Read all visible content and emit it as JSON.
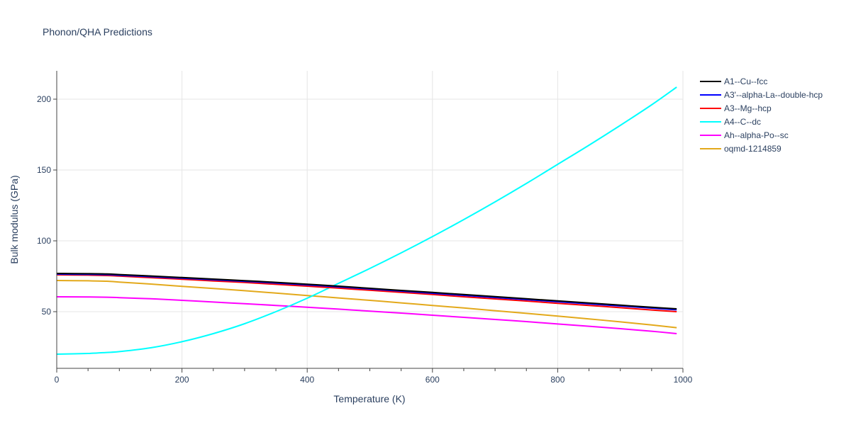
{
  "chart_data": {
    "type": "line",
    "title": "Phonon/QHA Predictions",
    "xlabel": "Temperature (K)",
    "ylabel": "Bulk modulus (GPa)",
    "xlim": [
      0,
      1000
    ],
    "ylim": [
      10,
      220
    ],
    "xticks": [
      0,
      200,
      400,
      600,
      800,
      1000
    ],
    "yticks": [
      50,
      100,
      150,
      200
    ],
    "grid": true,
    "legend_position": "top-right",
    "x": [
      0,
      50,
      80,
      100,
      150,
      200,
      250,
      300,
      350,
      400,
      450,
      500,
      550,
      600,
      650,
      700,
      750,
      800,
      850,
      900,
      950,
      990
    ],
    "series": [
      {
        "name": "A1--Cu--fcc",
        "color": "#000000",
        "values": [
          77.0,
          76.8,
          76.6,
          76.2,
          75.2,
          74.1,
          73.0,
          71.9,
          70.7,
          69.4,
          68.0,
          66.5,
          65.0,
          63.6,
          62.1,
          60.6,
          59.1,
          57.6,
          56.1,
          54.6,
          53.1,
          52.0
        ]
      },
      {
        "name": "A3'--alpha-La--double-hcp",
        "color": "#0000ff",
        "values": [
          76.5,
          76.3,
          76.1,
          75.7,
          74.7,
          73.6,
          72.5,
          71.4,
          70.2,
          68.9,
          67.5,
          66.0,
          64.5,
          63.0,
          61.5,
          60.0,
          58.5,
          57.0,
          55.5,
          54.0,
          52.5,
          51.3
        ]
      },
      {
        "name": "A3--Mg--hcp",
        "color": "#ff0000",
        "values": [
          76.0,
          75.8,
          75.5,
          75.1,
          74.0,
          72.9,
          71.7,
          70.6,
          69.3,
          68.0,
          66.6,
          65.1,
          63.6,
          62.1,
          60.5,
          59.0,
          57.5,
          55.9,
          54.4,
          52.8,
          51.2,
          50.0
        ]
      },
      {
        "name": "A4--C--dc",
        "color": "#00ffff",
        "values": [
          20.0,
          20.5,
          21.2,
          21.8,
          24.5,
          28.8,
          34.5,
          41.5,
          50.0,
          59.5,
          70.0,
          80.5,
          91.5,
          103.0,
          115.0,
          127.5,
          140.5,
          154.0,
          167.5,
          181.5,
          196.0,
          208.5
        ]
      },
      {
        "name": "Ah--alpha-Po--sc",
        "color": "#ff00ff",
        "values": [
          60.5,
          60.4,
          60.2,
          59.9,
          59.1,
          58.0,
          56.8,
          55.6,
          54.4,
          53.1,
          51.8,
          50.4,
          49.0,
          47.5,
          46.0,
          44.5,
          43.0,
          41.3,
          39.7,
          38.0,
          36.2,
          34.5
        ]
      },
      {
        "name": "oqmd-1214859",
        "color": "#e3a91b",
        "values": [
          72.0,
          71.8,
          71.5,
          70.9,
          69.5,
          67.9,
          66.4,
          64.8,
          63.1,
          61.4,
          59.7,
          58.0,
          56.2,
          54.4,
          52.6,
          50.7,
          48.8,
          46.9,
          44.9,
          42.8,
          40.6,
          38.7
        ]
      }
    ]
  }
}
